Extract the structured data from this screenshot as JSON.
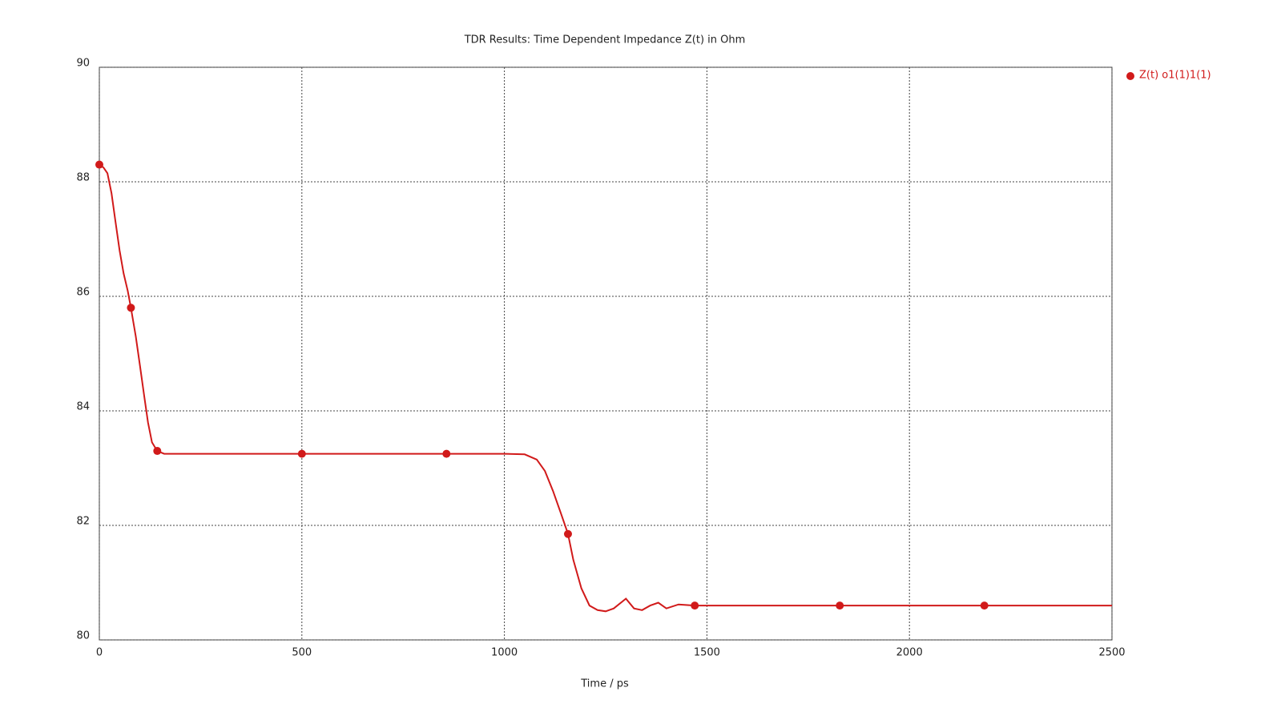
{
  "chart_data": {
    "type": "line",
    "title": "TDR Results: Time Dependent Impedance Z(t) in Ohm",
    "x_label": "Time / ps",
    "xlim": [
      0,
      2500
    ],
    "xticks": [
      0,
      500,
      1000,
      1500,
      2000,
      2500
    ],
    "ylim": [
      80,
      90
    ],
    "yticks": [
      80,
      82,
      84,
      86,
      88,
      90
    ],
    "grid": true,
    "legend": "right",
    "series": [
      {
        "name": "Z(t) o1(1)1(1)",
        "color": "#d11a1a",
        "x": [
          0,
          10,
          20,
          30,
          40,
          50,
          60,
          70,
          78,
          90,
          100,
          110,
          120,
          130,
          143,
          160,
          200,
          300,
          500,
          857,
          1000,
          1050,
          1080,
          1100,
          1120,
          1140,
          1157,
          1170,
          1190,
          1210,
          1230,
          1250,
          1270,
          1300,
          1320,
          1340,
          1360,
          1380,
          1400,
          1430,
          1470,
          1500,
          1600,
          1828,
          2185,
          2500
        ],
        "values": [
          88.3,
          88.25,
          88.15,
          87.8,
          87.3,
          86.8,
          86.4,
          86.1,
          85.8,
          85.3,
          84.8,
          84.3,
          83.8,
          83.45,
          83.3,
          83.25,
          83.25,
          83.25,
          83.25,
          83.25,
          83.25,
          83.24,
          83.15,
          82.95,
          82.6,
          82.2,
          81.85,
          81.4,
          80.9,
          80.6,
          80.52,
          80.5,
          80.55,
          80.72,
          80.55,
          80.52,
          80.6,
          80.65,
          80.55,
          80.62,
          80.6,
          80.6,
          80.6,
          80.6,
          80.6,
          80.6
        ],
        "markers": {
          "x": [
            0,
            78,
            143,
            500,
            857,
            1157,
            1470,
            1828,
            2185
          ],
          "values": [
            88.3,
            85.8,
            83.3,
            83.25,
            83.25,
            81.85,
            80.6,
            80.6,
            80.6
          ]
        }
      }
    ]
  }
}
